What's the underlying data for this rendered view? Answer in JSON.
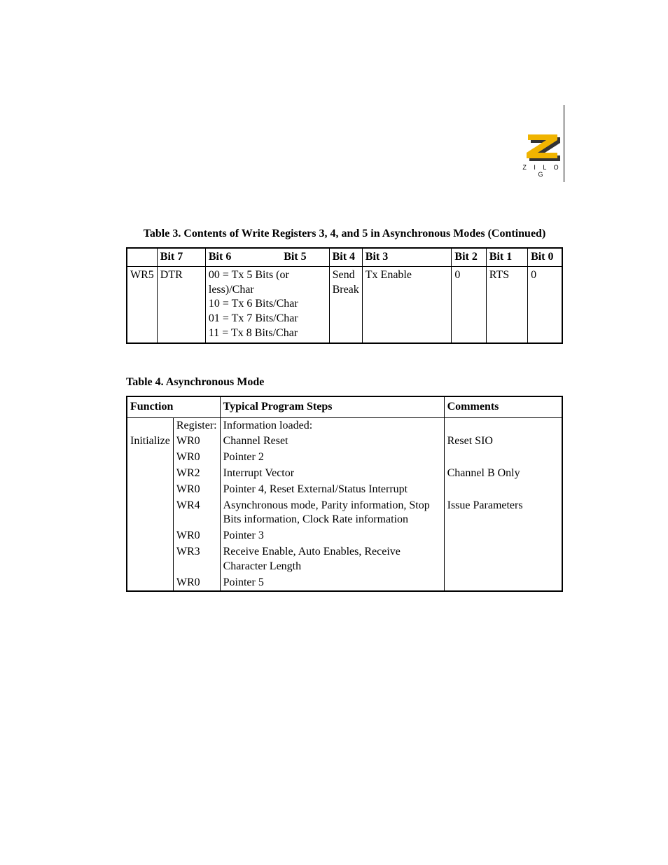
{
  "logo": {
    "brand_text": "Z I L O G",
    "z_fill": "#f0b400",
    "z_shadow": "#333333"
  },
  "table3": {
    "caption": "Table 3. Contents of Write Registers 3, 4, and 5 in Asynchronous Modes  (Continued)",
    "headers": [
      "",
      "Bit 7",
      "Bit 6",
      "Bit 5",
      "Bit 4",
      "Bit 3",
      "Bit 2",
      "Bit 1",
      "Bit 0"
    ],
    "row": {
      "label": "WR5",
      "bit7": "DTR",
      "bit65_line1": "00 = Tx 5 Bits (or less)/Char",
      "bit65_line2": "10 = Tx 6 Bits/Char",
      "bit65_line3": "01 = Tx 7 Bits/Char",
      "bit65_line4": "11 = Tx 8 Bits/Char",
      "bit4": "Send Break",
      "bit3": "Tx Enable",
      "bit2": "0",
      "bit1": "RTS",
      "bit0": "0"
    }
  },
  "table4": {
    "caption": "Table 4. Asynchronous Mode",
    "headers": {
      "function": "Function",
      "steps": "Typical Program Steps",
      "comments": "Comments"
    },
    "rows": [
      {
        "f0": "",
        "f1": "Register:",
        "steps": "Information loaded:",
        "comments": ""
      },
      {
        "f0": "Initialize",
        "f1": "WR0",
        "steps": "Channel Reset",
        "comments": "Reset SIO"
      },
      {
        "f0": "",
        "f1": "WR0",
        "steps": "Pointer 2",
        "comments": ""
      },
      {
        "f0": "",
        "f1": "WR2",
        "steps": "Interrupt Vector",
        "comments": "Channel B Only"
      },
      {
        "f0": "",
        "f1": "WR0",
        "steps": "Pointer 4, Reset External/Status Interrupt",
        "comments": ""
      },
      {
        "f0": "",
        "f1": "WR4",
        "steps": "Asynchronous mode, Parity information, Stop Bits information, Clock Rate information",
        "comments": "Issue Parameters"
      },
      {
        "f0": "",
        "f1": "WR0",
        "steps": "Pointer 3",
        "comments": ""
      },
      {
        "f0": "",
        "f1": "WR3",
        "steps": "Receive Enable, Auto Enables, Receive Character Length",
        "comments": ""
      },
      {
        "f0": "",
        "f1": "WR0",
        "steps": "Pointer 5",
        "comments": ""
      }
    ],
    "col_widths": {
      "f0": "58px",
      "f1": "64px",
      "steps": "320px",
      "comments": "auto"
    }
  }
}
